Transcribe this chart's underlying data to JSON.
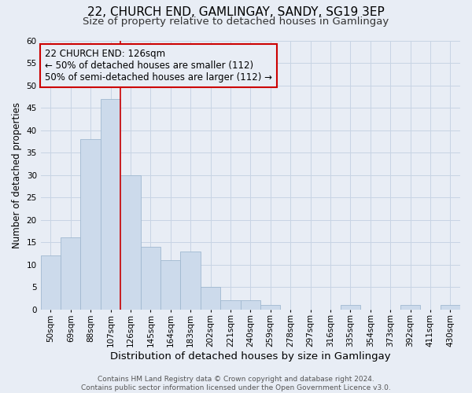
{
  "title": "22, CHURCH END, GAMLINGAY, SANDY, SG19 3EP",
  "subtitle": "Size of property relative to detached houses in Gamlingay",
  "xlabel": "Distribution of detached houses by size in Gamlingay",
  "ylabel": "Number of detached properties",
  "footer_line1": "Contains HM Land Registry data © Crown copyright and database right 2024.",
  "footer_line2": "Contains public sector information licensed under the Open Government Licence v3.0.",
  "bin_labels": [
    "50sqm",
    "69sqm",
    "88sqm",
    "107sqm",
    "126sqm",
    "145sqm",
    "164sqm",
    "183sqm",
    "202sqm",
    "221sqm",
    "240sqm",
    "259sqm",
    "278sqm",
    "297sqm",
    "316sqm",
    "335sqm",
    "354sqm",
    "373sqm",
    "392sqm",
    "411sqm",
    "430sqm"
  ],
  "bar_heights": [
    12,
    16,
    38,
    47,
    30,
    14,
    11,
    13,
    5,
    2,
    2,
    1,
    0,
    0,
    0,
    1,
    0,
    0,
    1,
    0,
    1
  ],
  "bar_color": "#ccdaeb",
  "bar_edgecolor": "#a0b8d0",
  "grid_color": "#c8d4e4",
  "background_color": "#e8edf5",
  "vline_color": "#cc0000",
  "annotation_box_text": "22 CHURCH END: 126sqm\n← 50% of detached houses are smaller (112)\n50% of semi-detached houses are larger (112) →",
  "annotation_box_edgecolor": "#cc0000",
  "ylim": [
    0,
    60
  ],
  "yticks": [
    0,
    5,
    10,
    15,
    20,
    25,
    30,
    35,
    40,
    45,
    50,
    55,
    60
  ],
  "title_fontsize": 11,
  "subtitle_fontsize": 9.5,
  "xlabel_fontsize": 9.5,
  "ylabel_fontsize": 8.5,
  "tick_fontsize": 7.5,
  "annotation_fontsize": 8.5,
  "footer_fontsize": 6.5
}
